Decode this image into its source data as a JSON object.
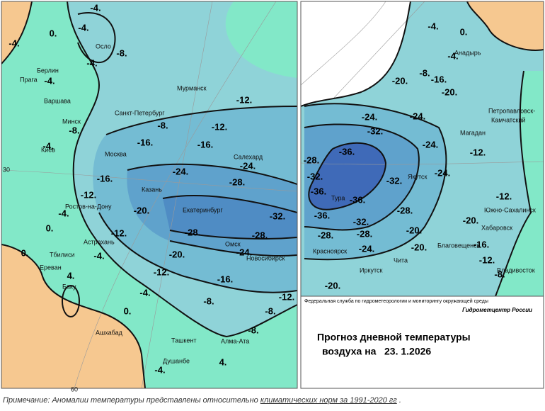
{
  "left_map": {
    "grid_labels": [
      "30",
      "60"
    ],
    "cities": [
      "Осло",
      "Берлин",
      "Прага",
      "Варшава",
      "Мурманск",
      "Санкт-Петербург",
      "Минск",
      "Киев",
      "Москва",
      "Салехард",
      "Казань",
      "Ростов-на-Дону",
      "Екатеринбург",
      "Астрахань",
      "Омск",
      "Тбилиси",
      "Новосибирск",
      "Ереван",
      "Баку",
      "Ашхабад",
      "Ташкент",
      "Алма-Ата",
      "Душанбе"
    ],
    "contour_labels": [
      "-4.",
      "0.",
      "-4.",
      "-4.",
      "-8.",
      "-4.",
      "-4.",
      "-8.",
      "-4.",
      "-12.",
      "-8.",
      "-12.",
      "-16.",
      "-16.",
      "-24.",
      "-24.",
      "-16.",
      "-28.",
      "-12.",
      "-20.",
      "-4.",
      "-32.",
      "0.",
      "-12.",
      "-28.",
      "-28.",
      "0.",
      "-4.",
      "-20.",
      "-24.",
      "4.",
      "-12.",
      "-16.",
      "-4.",
      "-12.",
      "-8.",
      "-8.",
      "0.",
      "-8.",
      "4.",
      "-4."
    ]
  },
  "right_map": {
    "cities": [
      "Анадырь",
      "Петропавловск-",
      "Камчатский",
      "Магадан",
      "Якутск",
      "Тура",
      "Южно-Сахалинск",
      "Хабаровск",
      "Красноярск",
      "Благовещенск",
      "Иркутск",
      "Чита",
      "Владивосток"
    ],
    "contour_labels": [
      "-4.",
      "0.",
      "-4.",
      "-8.",
      "-20.",
      "-16.",
      "-20.",
      "-24.",
      "-24.",
      "-32.",
      "-36.",
      "-28.",
      "-24.",
      "-12.",
      "-24.",
      "-32.",
      "-32.",
      "-36.",
      "-36.",
      "-12.",
      "-28.",
      "-36.",
      "-32.",
      "-20.",
      "-28.",
      "-28.",
      "-20.",
      "-16.",
      "-24.",
      "-20.",
      "-12.",
      "-8.",
      "-20."
    ]
  },
  "info_box": {
    "agency": "Федеральная служба по гидрометеорологии и мониторингу окружающей среды",
    "org": "Гидрометцентр России",
    "title_line1": "Прогноз дневной температуры",
    "title_line2": "воздуха на",
    "date": "23. 1.2026"
  },
  "note": {
    "prefix": "Примечание: Аномалии температуры представлены относительно",
    "link": "климатических норм за 1991-2020 гг",
    "suffix": "."
  }
}
